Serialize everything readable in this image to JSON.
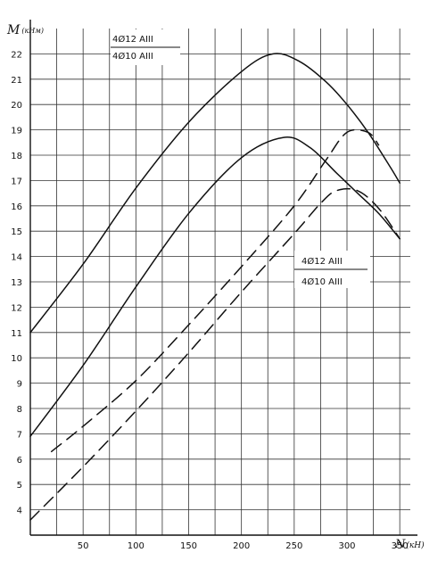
{
  "chart_data": {
    "type": "line",
    "title": "",
    "ylabel": "M",
    "ylabel_unit": "(кНм)",
    "xlabel": "N",
    "xlabel_unit": "(кН)",
    "xlim": [
      0,
      360
    ],
    "ylim": [
      3,
      23
    ],
    "x_ticks": [
      50,
      100,
      150,
      200,
      250,
      300,
      350
    ],
    "y_ticks": [
      4,
      5,
      6,
      7,
      8,
      9,
      10,
      11,
      12,
      13,
      14,
      15,
      16,
      17,
      18,
      19,
      20,
      21,
      22
    ],
    "grid": true,
    "series": [
      {
        "name": "",
        "style": "solid",
        "x": [
          0,
          50,
          100,
          150,
          200,
          230,
          255,
          280,
          300,
          320,
          340,
          350
        ],
        "y": [
          11.0,
          13.7,
          16.7,
          19.3,
          21.3,
          22.0,
          21.7,
          20.9,
          20.0,
          18.9,
          17.6,
          16.9
        ]
      },
      {
        "name": "",
        "style": "solid",
        "x": [
          0,
          50,
          100,
          150,
          200,
          240,
          265,
          290,
          310,
          330,
          350
        ],
        "y": [
          6.9,
          9.7,
          12.8,
          15.7,
          17.9,
          18.7,
          18.3,
          17.3,
          16.5,
          15.7,
          14.7
        ]
      },
      {
        "name": "",
        "style": "dashed",
        "x": [
          20,
          50,
          100,
          150,
          200,
          250,
          280,
          300,
          320,
          330
        ],
        "y": [
          6.3,
          7.3,
          9.1,
          11.3,
          13.6,
          16.0,
          17.8,
          18.9,
          18.9,
          18.4
        ]
      },
      {
        "name": "",
        "style": "dashed",
        "x": [
          0,
          50,
          100,
          150,
          200,
          250,
          275,
          290,
          310,
          330,
          350
        ],
        "y": [
          3.6,
          5.7,
          7.9,
          10.2,
          12.6,
          14.9,
          16.1,
          16.6,
          16.6,
          15.9,
          14.7
        ]
      }
    ],
    "legends": [
      {
        "position": "top-left",
        "entries": [
          "4Ø12 AIII",
          "4Ø10 AIII"
        ]
      },
      {
        "position": "middle-right",
        "entries": [
          "4Ø12 AIII",
          "4Ø10 AIII"
        ]
      }
    ]
  }
}
